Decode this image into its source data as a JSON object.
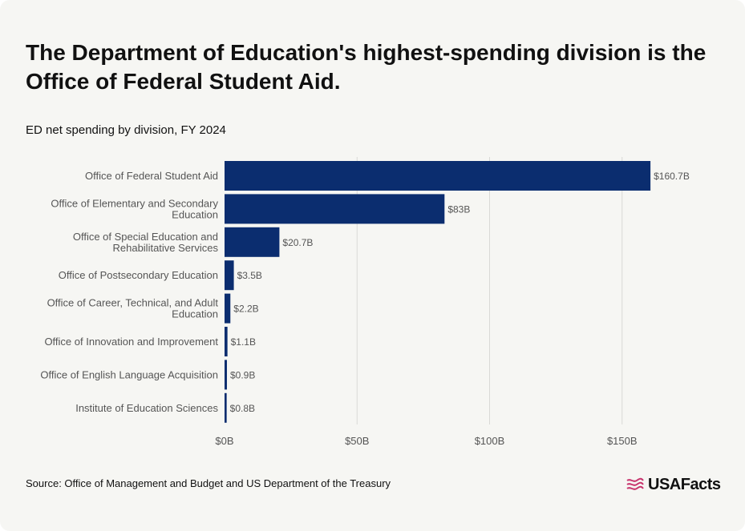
{
  "title": "The Department of Education's highest-spending division is the Office of Federal Student Aid.",
  "subtitle": "ED net spending by division, FY 2024",
  "source": "Source: Office of Management and Budget and US Department of the Treasury",
  "brand": "USAFacts",
  "colors": {
    "bar": "#0b2d6f",
    "grid": "#d9d9d6",
    "text": "#555555",
    "accent": "#c8356e"
  },
  "chart_data": {
    "type": "bar",
    "orientation": "horizontal",
    "title": "ED net spending by division, FY 2024",
    "xlabel": "",
    "ylabel": "",
    "xlim": [
      0,
      170
    ],
    "units": "billions of dollars",
    "categories": [
      [
        "Office of Federal Student Aid"
      ],
      [
        "Office of Elementary and Secondary",
        "Education"
      ],
      [
        "Office of Special Education and",
        "Rehabilitative Services"
      ],
      [
        "Office of Postsecondary Education"
      ],
      [
        "Office of Career, Technical, and Adult",
        "Education"
      ],
      [
        "Office of Innovation and Improvement"
      ],
      [
        "Office of English Language Acquisition"
      ],
      [
        "Institute of Education Sciences"
      ]
    ],
    "values": [
      160.7,
      83,
      20.7,
      3.5,
      2.2,
      1.1,
      0.9,
      0.8
    ],
    "value_labels": [
      "$160.7B",
      "$83B",
      "$20.7B",
      "$3.5B",
      "$2.2B",
      "$1.1B",
      "$0.9B",
      "$0.8B"
    ],
    "ticks": [
      0,
      50,
      100,
      150
    ],
    "tick_labels": [
      "$0B",
      "$50B",
      "$100B",
      "$150B"
    ],
    "grid": true
  }
}
